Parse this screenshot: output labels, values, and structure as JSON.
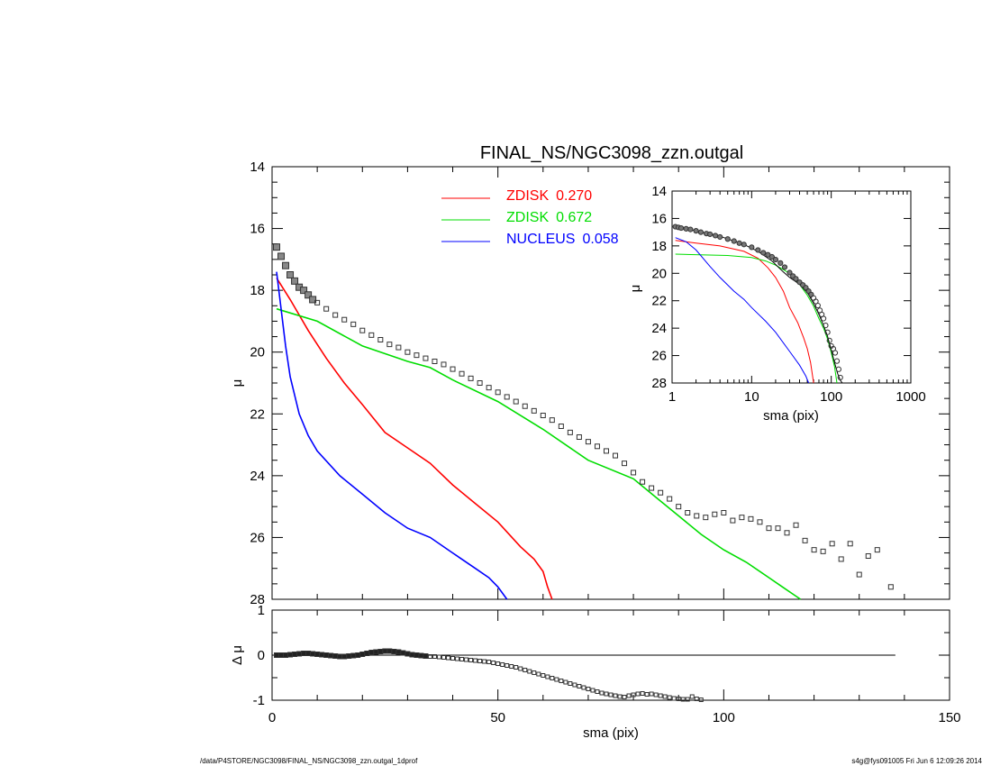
{
  "footer_left": "/data/P4STORE/NGC3098/FINAL_NS/NGC3098_zzn.outgal_1dprof",
  "footer_right": "s4g@fys091005  Fri Jun  6 12:09:26 2014",
  "colors": {
    "zdisk1": "#ff0000",
    "zdisk2": "#00dd00",
    "nucleus": "#0000ff",
    "data": "#000000"
  },
  "chart_data": [
    {
      "type": "line",
      "title": "FINAL_NS/NGC3098_zzn.outgal",
      "xlabel": "",
      "ylabel": "μ",
      "xlim": [
        0,
        150
      ],
      "ylim": [
        28,
        14
      ],
      "x_ticks": [
        0,
        50,
        100,
        150
      ],
      "y_ticks": [
        14,
        16,
        18,
        20,
        22,
        24,
        26,
        28
      ],
      "legend_position": "top-center",
      "series": [
        {
          "name": "ZDISK",
          "label_value": "0.270",
          "color": "#ff0000",
          "x": [
            1,
            4,
            8,
            12,
            16,
            20,
            25,
            30,
            35,
            40,
            45,
            50,
            55,
            58,
            60,
            61,
            62
          ],
          "y": [
            17.6,
            18.3,
            19.3,
            20.2,
            21.0,
            21.7,
            22.6,
            23.1,
            23.6,
            24.3,
            24.9,
            25.5,
            26.3,
            26.7,
            27.1,
            27.6,
            28.0
          ]
        },
        {
          "name": "ZDISK",
          "label_value": "0.672",
          "color": "#00dd00",
          "x": [
            1,
            10,
            20,
            30,
            35,
            40,
            50,
            60,
            70,
            80,
            85,
            90,
            95,
            100,
            105,
            110,
            113,
            115,
            117
          ],
          "y": [
            18.6,
            19.0,
            19.8,
            20.3,
            20.5,
            20.9,
            21.6,
            22.5,
            23.5,
            24.1,
            24.7,
            25.3,
            25.9,
            26.4,
            26.8,
            27.3,
            27.6,
            27.8,
            28.0
          ]
        },
        {
          "name": "NUCLEUS",
          "label_value": "0.058",
          "color": "#0000ff",
          "x": [
            1,
            2,
            3,
            4,
            6,
            8,
            10,
            15,
            20,
            25,
            30,
            35,
            40,
            45,
            48,
            50,
            52
          ],
          "y": [
            17.4,
            18.6,
            19.8,
            20.8,
            22.0,
            22.7,
            23.2,
            24.0,
            24.6,
            25.2,
            25.7,
            26.0,
            26.5,
            27.0,
            27.3,
            27.6,
            28.0
          ]
        }
      ],
      "data_points": {
        "x": [
          1,
          2,
          3,
          4,
          5,
          6,
          7,
          8,
          9,
          10,
          12,
          14,
          16,
          18,
          20,
          22,
          24,
          26,
          28,
          30,
          32,
          34,
          36,
          38,
          40,
          42,
          44,
          46,
          48,
          50,
          52,
          54,
          56,
          58,
          60,
          62,
          64,
          66,
          68,
          70,
          72,
          74,
          76,
          78,
          80,
          82,
          84,
          86,
          88,
          90,
          92,
          94,
          96,
          98,
          100,
          102,
          104,
          106,
          108,
          110,
          112,
          114,
          116,
          118,
          120,
          122,
          124,
          126,
          128,
          130,
          132,
          134,
          137
        ],
        "y": [
          16.6,
          16.9,
          17.2,
          17.5,
          17.7,
          17.9,
          18.0,
          18.15,
          18.3,
          18.4,
          18.6,
          18.8,
          18.95,
          19.1,
          19.3,
          19.45,
          19.6,
          19.75,
          19.85,
          20.0,
          20.1,
          20.2,
          20.3,
          20.4,
          20.55,
          20.7,
          20.85,
          21.0,
          21.15,
          21.3,
          21.45,
          21.6,
          21.75,
          21.9,
          22.05,
          22.2,
          22.4,
          22.6,
          22.75,
          22.9,
          23.05,
          23.2,
          23.35,
          23.6,
          23.9,
          24.2,
          24.4,
          24.55,
          24.75,
          25.0,
          25.2,
          25.3,
          25.35,
          25.25,
          25.2,
          25.45,
          25.35,
          25.4,
          25.5,
          25.7,
          25.7,
          25.85,
          25.6,
          26.1,
          26.4,
          26.45,
          26.2,
          26.7,
          26.2,
          27.2,
          26.6,
          26.4,
          27.6
        ]
      }
    },
    {
      "type": "scatter",
      "title": "",
      "xlabel": "sma (pix)",
      "ylabel": "Δ μ",
      "xlim": [
        0,
        150
      ],
      "ylim": [
        -1,
        1
      ],
      "x_ticks": [
        0,
        50,
        100,
        150
      ],
      "y_ticks": [
        1,
        0,
        -1
      ],
      "zero_line": {
        "x": [
          0,
          138
        ],
        "y": 0
      },
      "residuals": {
        "x": [
          1,
          2,
          3,
          4,
          5,
          6,
          7,
          8,
          9,
          10,
          11,
          12,
          13,
          14,
          15,
          16,
          17,
          18,
          19,
          20,
          21,
          22,
          23,
          24,
          25,
          26,
          27,
          28,
          29,
          30,
          31,
          32,
          33,
          34,
          35,
          36,
          37,
          38,
          39,
          40,
          41,
          42,
          43,
          44,
          45,
          46,
          47,
          48,
          49,
          50,
          51,
          52,
          53,
          54,
          55,
          56,
          57,
          58,
          59,
          60,
          61,
          62,
          63,
          64,
          65,
          66,
          67,
          68,
          69,
          70,
          71,
          72,
          73,
          74,
          75,
          76,
          77,
          78,
          79,
          80,
          81,
          82,
          83,
          84,
          85,
          86,
          87,
          88,
          89,
          90,
          91,
          92,
          93,
          94,
          95
        ],
        "y": [
          0.0,
          0.0,
          0.0,
          0.01,
          0.02,
          0.03,
          0.04,
          0.04,
          0.03,
          0.02,
          0.01,
          0.0,
          -0.01,
          -0.02,
          -0.03,
          -0.03,
          -0.02,
          -0.01,
          0.0,
          0.02,
          0.04,
          0.06,
          0.07,
          0.08,
          0.09,
          0.09,
          0.08,
          0.07,
          0.05,
          0.03,
          0.01,
          0.0,
          -0.01,
          -0.02,
          -0.03,
          -0.03,
          -0.04,
          -0.05,
          -0.06,
          -0.07,
          -0.08,
          -0.09,
          -0.1,
          -0.11,
          -0.12,
          -0.13,
          -0.14,
          -0.15,
          -0.17,
          -0.19,
          -0.21,
          -0.23,
          -0.25,
          -0.27,
          -0.3,
          -0.33,
          -0.36,
          -0.39,
          -0.42,
          -0.45,
          -0.48,
          -0.51,
          -0.54,
          -0.57,
          -0.6,
          -0.63,
          -0.66,
          -0.69,
          -0.72,
          -0.75,
          -0.78,
          -0.81,
          -0.84,
          -0.86,
          -0.88,
          -0.9,
          -0.92,
          -0.93,
          -0.9,
          -0.88,
          -0.86,
          -0.85,
          -0.87,
          -0.86,
          -0.88,
          -0.9,
          -0.92,
          -0.94,
          -0.96,
          -0.97,
          -0.98,
          -0.98,
          -0.92,
          -0.97,
          -0.99
        ]
      }
    },
    {
      "type": "line",
      "title": "",
      "xlabel": "sma (pix)",
      "ylabel": "μ",
      "xscale": "log",
      "xlim": [
        1,
        1000
      ],
      "ylim": [
        28,
        14
      ],
      "x_ticks": [
        1,
        10,
        100,
        1000
      ],
      "y_ticks": [
        14,
        16,
        18,
        20,
        22,
        24,
        26,
        28
      ],
      "series": [
        {
          "color": "#ff0000",
          "x": [
            1.1,
            2,
            4,
            8,
            12,
            16,
            20,
            25,
            30,
            38,
            45,
            50,
            55,
            60
          ],
          "y": [
            17.6,
            17.8,
            18.0,
            18.4,
            18.9,
            19.6,
            20.3,
            21.3,
            22.5,
            23.6,
            24.7,
            25.5,
            26.5,
            28.0
          ]
        },
        {
          "color": "#00dd00",
          "x": [
            1.1,
            5,
            10,
            15,
            20,
            30,
            40,
            50,
            60,
            70,
            80,
            90,
            100,
            110,
            118
          ],
          "y": [
            18.6,
            18.7,
            18.85,
            19.1,
            19.4,
            20.0,
            20.8,
            21.6,
            22.4,
            23.3,
            24.0,
            24.8,
            25.8,
            26.8,
            28.0
          ]
        },
        {
          "color": "#0000ff",
          "x": [
            1.1,
            1.5,
            2,
            3,
            4,
            6,
            8,
            10,
            15,
            20,
            30,
            40,
            48,
            52
          ],
          "y": [
            17.4,
            17.7,
            18.3,
            19.5,
            20.3,
            21.3,
            21.9,
            22.5,
            23.5,
            24.3,
            25.7,
            26.7,
            27.5,
            28.0
          ]
        },
        {
          "color": "#000000",
          "x": [
            1.1,
            2,
            4,
            8,
            12,
            18,
            25,
            30,
            40,
            50,
            60,
            70,
            80,
            90,
            100,
            110,
            120,
            130,
            138
          ],
          "y": [
            16.6,
            16.9,
            17.3,
            17.9,
            18.4,
            19.1,
            19.9,
            20.3,
            20.8,
            21.4,
            22.2,
            23.0,
            23.8,
            24.6,
            25.6,
            26.5,
            27.3,
            27.8,
            28.0
          ]
        }
      ],
      "data_points": {
        "x": [
          1.1,
          1.2,
          1.3,
          1.5,
          1.7,
          2,
          2.3,
          2.7,
          3,
          3.5,
          4,
          5,
          6,
          7,
          8,
          10,
          12,
          14,
          16,
          18,
          20,
          23,
          26,
          30,
          33,
          36,
          40,
          44,
          48,
          52,
          56,
          60,
          64,
          68,
          72,
          76,
          80,
          85,
          90,
          95,
          100,
          106,
          112,
          118,
          124,
          130
        ],
        "y": [
          16.6,
          16.65,
          16.7,
          16.75,
          16.8,
          16.9,
          17.0,
          17.1,
          17.15,
          17.25,
          17.35,
          17.5,
          17.65,
          17.8,
          17.9,
          18.1,
          18.3,
          18.5,
          18.65,
          18.8,
          19.0,
          19.25,
          19.55,
          19.95,
          20.2,
          20.4,
          20.65,
          20.85,
          21.05,
          21.3,
          21.55,
          21.8,
          22.05,
          22.35,
          22.7,
          23.0,
          23.3,
          23.8,
          24.3,
          24.9,
          25.3,
          25.5,
          25.8,
          26.4,
          27.0,
          27.6
        ]
      }
    }
  ]
}
